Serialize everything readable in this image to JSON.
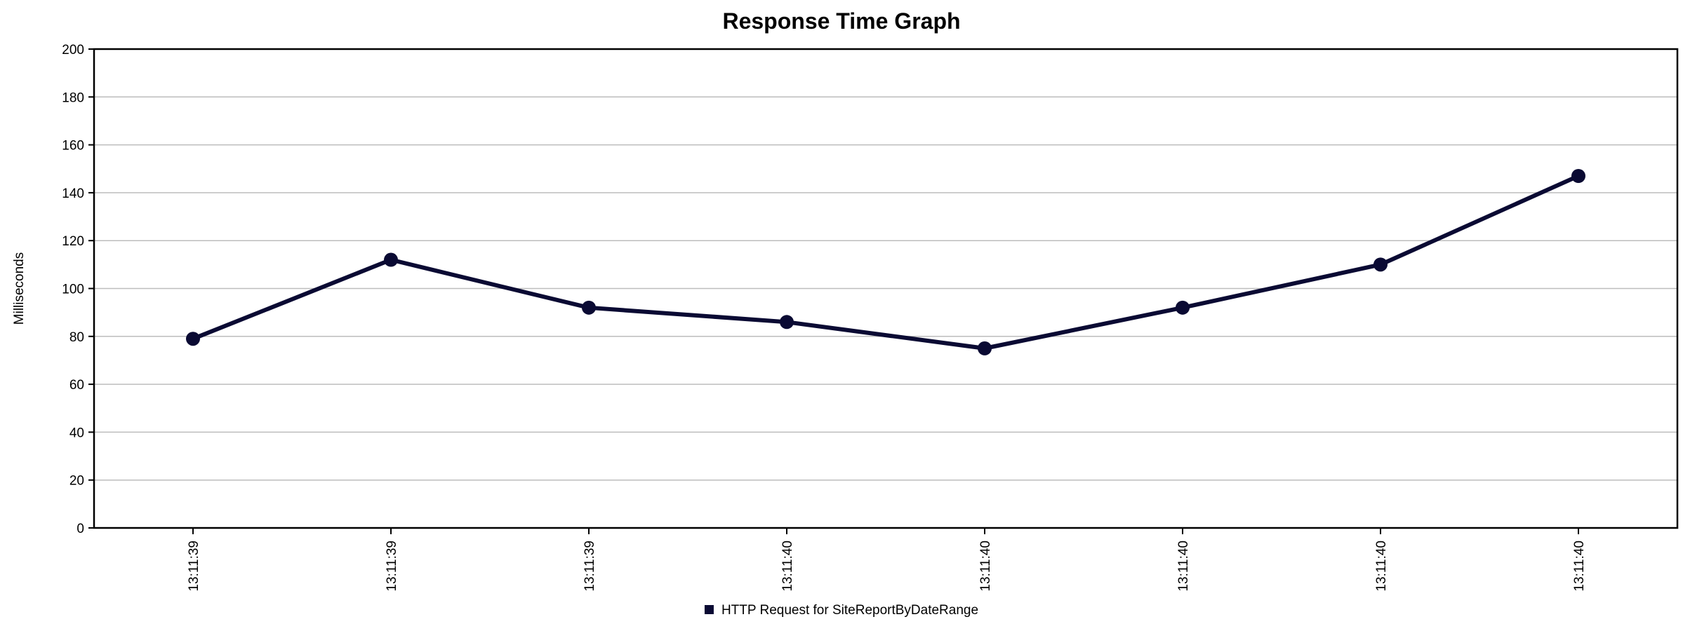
{
  "chart_data": {
    "type": "line",
    "title": "Response Time Graph",
    "xlabel": "",
    "ylabel": "Milliseconds",
    "ylim": [
      0,
      200
    ],
    "yticks": [
      0,
      20,
      40,
      60,
      80,
      100,
      120,
      140,
      160,
      180,
      200
    ],
    "grid": true,
    "legend_position": "bottom-center",
    "categories": [
      "13:11:39",
      "13:11:39",
      "13:11:39",
      "13:11:40",
      "13:11:40",
      "13:11:40",
      "13:11:40",
      "13:11:40"
    ],
    "series": [
      {
        "name": "HTTP Request for SiteReportByDateRange",
        "color": "#0a0a33",
        "values": [
          79,
          112,
          92,
          86,
          75,
          92,
          110,
          147
        ]
      }
    ]
  }
}
